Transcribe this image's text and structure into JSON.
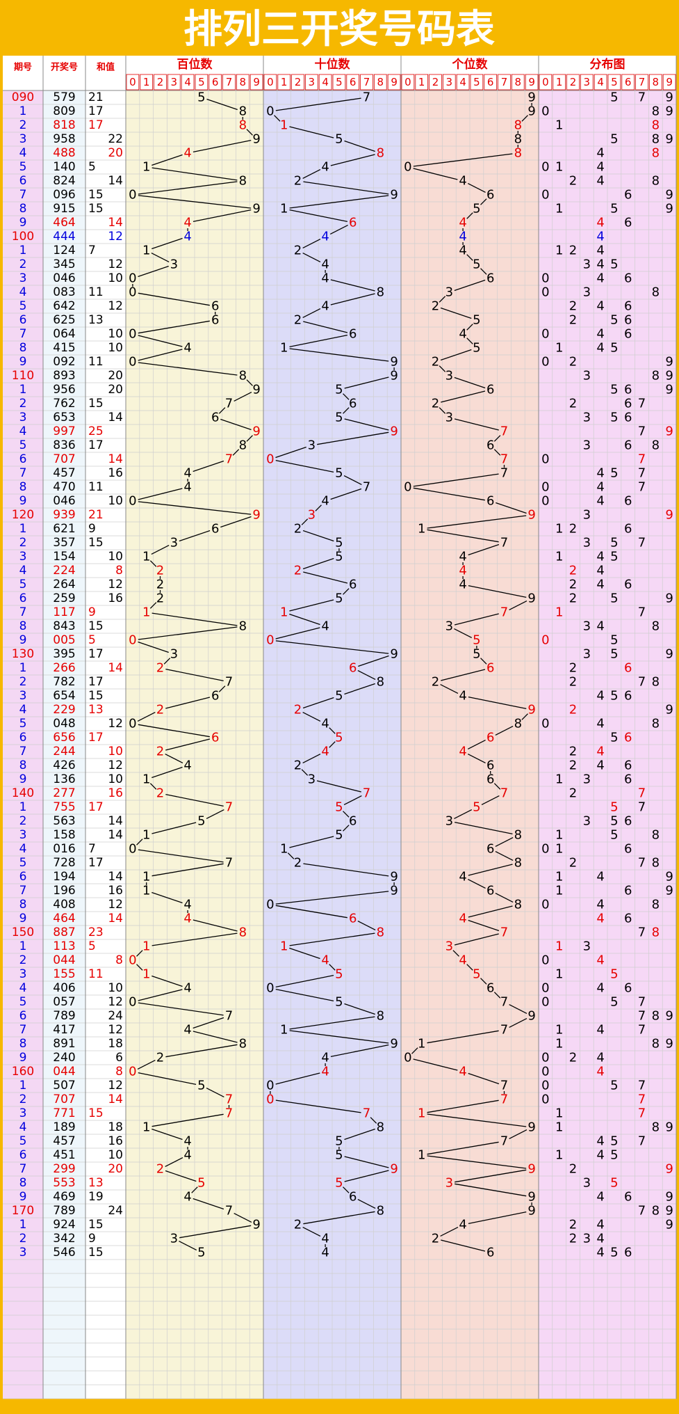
{
  "title": "排列三开奖号码表",
  "headers": {
    "period": "期号",
    "number": "开奖号",
    "sum": "和值",
    "hundreds": "百位数",
    "tens": "十位数",
    "units": "个位数",
    "distribution": "分布图"
  },
  "digits": [
    "0",
    "1",
    "2",
    "3",
    "4",
    "5",
    "6",
    "7",
    "8",
    "9"
  ],
  "rows": [
    {
      "period": "090",
      "number": "579",
      "sum": 21
    },
    {
      "period": "1",
      "number": "809",
      "sum": 17
    },
    {
      "period": "2",
      "number": "818",
      "sum": 17
    },
    {
      "period": "3",
      "number": "958",
      "sum": 22
    },
    {
      "period": "4",
      "number": "488",
      "sum": 20
    },
    {
      "period": "5",
      "number": "140",
      "sum": 5
    },
    {
      "period": "6",
      "number": "824",
      "sum": 14
    },
    {
      "period": "7",
      "number": "096",
      "sum": 15
    },
    {
      "period": "8",
      "number": "915",
      "sum": 15
    },
    {
      "period": "9",
      "number": "464",
      "sum": 14
    },
    {
      "period": "100",
      "number": "444",
      "sum": 12
    },
    {
      "period": "1",
      "number": "124",
      "sum": 7
    },
    {
      "period": "2",
      "number": "345",
      "sum": 12
    },
    {
      "period": "3",
      "number": "046",
      "sum": 10
    },
    {
      "period": "4",
      "number": "083",
      "sum": 11
    },
    {
      "period": "5",
      "number": "642",
      "sum": 12
    },
    {
      "period": "6",
      "number": "625",
      "sum": 13
    },
    {
      "period": "7",
      "number": "064",
      "sum": 10
    },
    {
      "period": "8",
      "number": "415",
      "sum": 10
    },
    {
      "period": "9",
      "number": "092",
      "sum": 11
    },
    {
      "period": "110",
      "number": "893",
      "sum": 20
    },
    {
      "period": "1",
      "number": "956",
      "sum": 20
    },
    {
      "period": "2",
      "number": "762",
      "sum": 15
    },
    {
      "period": "3",
      "number": "653",
      "sum": 14
    },
    {
      "period": "4",
      "number": "997",
      "sum": 25
    },
    {
      "period": "5",
      "number": "836",
      "sum": 17
    },
    {
      "period": "6",
      "number": "707",
      "sum": 14
    },
    {
      "period": "7",
      "number": "457",
      "sum": 16
    },
    {
      "period": "8",
      "number": "470",
      "sum": 11
    },
    {
      "period": "9",
      "number": "046",
      "sum": 10
    },
    {
      "period": "120",
      "number": "939",
      "sum": 21
    },
    {
      "period": "1",
      "number": "621",
      "sum": 9
    },
    {
      "period": "2",
      "number": "357",
      "sum": 15
    },
    {
      "period": "3",
      "number": "154",
      "sum": 10
    },
    {
      "period": "4",
      "number": "224",
      "sum": 8
    },
    {
      "period": "5",
      "number": "264",
      "sum": 12
    },
    {
      "period": "6",
      "number": "259",
      "sum": 16
    },
    {
      "period": "7",
      "number": "117",
      "sum": 9
    },
    {
      "period": "8",
      "number": "843",
      "sum": 15
    },
    {
      "period": "9",
      "number": "005",
      "sum": 5
    },
    {
      "period": "130",
      "number": "395",
      "sum": 17
    },
    {
      "period": "1",
      "number": "266",
      "sum": 14
    },
    {
      "period": "2",
      "number": "782",
      "sum": 17
    },
    {
      "period": "3",
      "number": "654",
      "sum": 15
    },
    {
      "period": "4",
      "number": "229",
      "sum": 13
    },
    {
      "period": "5",
      "number": "048",
      "sum": 12
    },
    {
      "period": "6",
      "number": "656",
      "sum": 17
    },
    {
      "period": "7",
      "number": "244",
      "sum": 10
    },
    {
      "period": "8",
      "number": "426",
      "sum": 12
    },
    {
      "period": "9",
      "number": "136",
      "sum": 10
    },
    {
      "period": "140",
      "number": "277",
      "sum": 16
    },
    {
      "period": "1",
      "number": "755",
      "sum": 17
    },
    {
      "period": "2",
      "number": "563",
      "sum": 14
    },
    {
      "period": "3",
      "number": "158",
      "sum": 14
    },
    {
      "period": "4",
      "number": "016",
      "sum": 7
    },
    {
      "period": "5",
      "number": "728",
      "sum": 17
    },
    {
      "period": "6",
      "number": "194",
      "sum": 14
    },
    {
      "period": "7",
      "number": "196",
      "sum": 16
    },
    {
      "period": "8",
      "number": "408",
      "sum": 12
    },
    {
      "period": "9",
      "number": "464",
      "sum": 14
    },
    {
      "period": "150",
      "number": "887",
      "sum": 23
    },
    {
      "period": "1",
      "number": "113",
      "sum": 5
    },
    {
      "period": "2",
      "number": "044",
      "sum": 8
    },
    {
      "period": "3",
      "number": "155",
      "sum": 11
    },
    {
      "period": "4",
      "number": "406",
      "sum": 10
    },
    {
      "period": "5",
      "number": "057",
      "sum": 12
    },
    {
      "period": "6",
      "number": "789",
      "sum": 24
    },
    {
      "period": "7",
      "number": "417",
      "sum": 12
    },
    {
      "period": "8",
      "number": "891",
      "sum": 18
    },
    {
      "period": "9",
      "number": "240",
      "sum": 6
    },
    {
      "period": "160",
      "number": "044",
      "sum": 8
    },
    {
      "period": "1",
      "number": "507",
      "sum": 12
    },
    {
      "period": "2",
      "number": "707",
      "sum": 14
    },
    {
      "period": "3",
      "number": "771",
      "sum": 15
    },
    {
      "period": "4",
      "number": "189",
      "sum": 18
    },
    {
      "period": "5",
      "number": "457",
      "sum": 16
    },
    {
      "period": "6",
      "number": "451",
      "sum": 10
    },
    {
      "period": "7",
      "number": "299",
      "sum": 20
    },
    {
      "period": "8",
      "number": "553",
      "sum": 13
    },
    {
      "period": "9",
      "number": "469",
      "sum": 19
    },
    {
      "period": "170",
      "number": "789",
      "sum": 24
    },
    {
      "period": "1",
      "number": "924",
      "sum": 15
    },
    {
      "period": "2",
      "number": "342",
      "sum": 9
    },
    {
      "period": "3",
      "number": "546",
      "sum": 15
    }
  ]
}
